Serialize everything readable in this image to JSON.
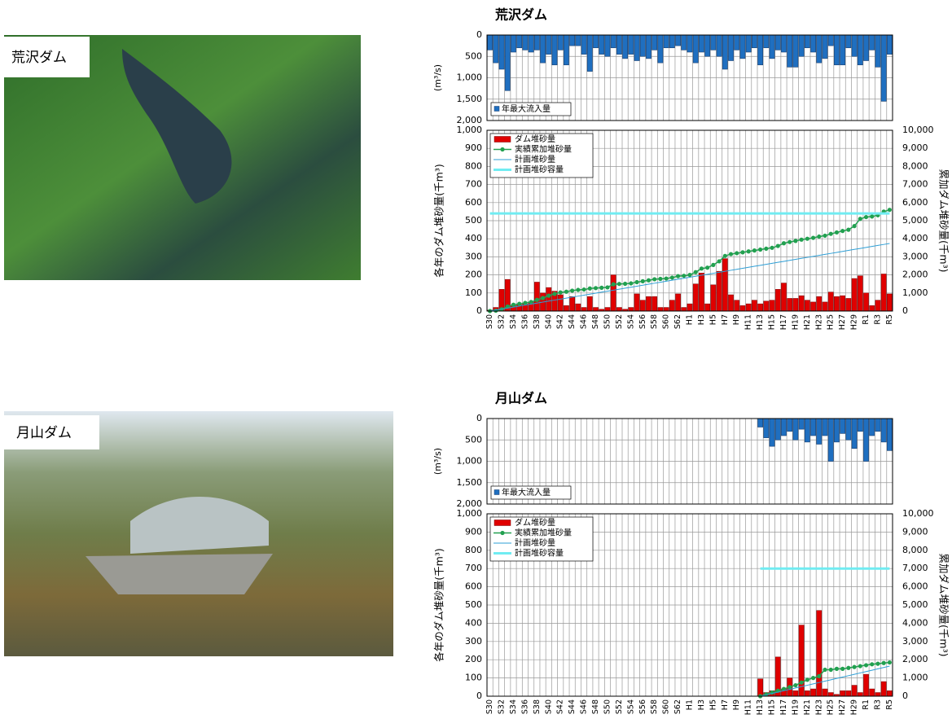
{
  "photos": [
    {
      "label": "荒沢ダム"
    },
    {
      "label": "月山ダム"
    }
  ],
  "chart_data": [
    {
      "type": "inflow",
      "title": "荒沢ダム",
      "ylabel": "(m³/s)",
      "ylim": [
        2000,
        0
      ],
      "yticks": [
        0,
        500,
        {
          "value": 1000,
          "label": "1,000"
        },
        {
          "value": 1500,
          "label": "1,500"
        },
        {
          "value": 2000,
          "label": "2,000"
        }
      ],
      "grid": true,
      "series": [
        {
          "name": "年最大流入量",
          "color": "#1f6fc0",
          "values": [
            350,
            650,
            800,
            1300,
            400,
            300,
            350,
            400,
            350,
            650,
            450,
            700,
            350,
            700,
            250,
            250,
            450,
            850,
            300,
            450,
            500,
            300,
            450,
            550,
            450,
            600,
            500,
            550,
            350,
            650,
            300,
            300,
            250,
            350,
            400,
            650,
            400,
            500,
            350,
            500,
            800,
            600,
            350,
            550,
            400,
            300,
            700,
            300,
            550,
            350,
            400,
            750,
            750,
            500,
            300,
            400,
            650,
            550,
            250,
            700,
            700,
            300,
            500,
            700,
            600,
            350,
            750,
            1550,
            450
          ]
        }
      ]
    },
    {
      "type": "combo",
      "ylabel": "各年のダム堆砂量(千m³)",
      "y2label": "累加ダム堆砂量(千m³)",
      "ylim": [
        0,
        1000
      ],
      "yticks": [
        0,
        100,
        200,
        300,
        400,
        500,
        600,
        700,
        800,
        900,
        {
          "value": 1000,
          "label": "1,000"
        }
      ],
      "y2lim": [
        0,
        10000
      ],
      "y2ticks": [
        0,
        {
          "value": 1000,
          "label": "1,000"
        },
        {
          "value": 2000,
          "label": "2,000"
        },
        {
          "value": 3000,
          "label": "3,000"
        },
        {
          "value": 4000,
          "label": "4,000"
        },
        {
          "value": 5000,
          "label": "5,000"
        },
        {
          "value": 6000,
          "label": "6,000"
        },
        {
          "value": 7000,
          "label": "7,000"
        },
        {
          "value": 8000,
          "label": "8,000"
        },
        {
          "value": 9000,
          "label": "9,000"
        },
        {
          "value": 10000,
          "label": "10,000"
        }
      ],
      "grid": true,
      "legend": "top-left",
      "categories": [
        "S30",
        null,
        "S32",
        null,
        "S34",
        null,
        "S36",
        null,
        "S38",
        null,
        "S40",
        null,
        "S42",
        null,
        "S44",
        null,
        "S46",
        null,
        "S48",
        null,
        "S50",
        null,
        "S52",
        null,
        "S54",
        null,
        "S56",
        null,
        "S58",
        null,
        "S60",
        null,
        "S62",
        null,
        "H1",
        null,
        "H3",
        null,
        "H5",
        null,
        "H7",
        null,
        "H9",
        null,
        "H11",
        null,
        "H13",
        null,
        "H15",
        null,
        "H17",
        null,
        "H19",
        null,
        "H21",
        null,
        "H23",
        null,
        "H25",
        null,
        "H27",
        null,
        "H29",
        null,
        "R1",
        null,
        "R3",
        null,
        "R5"
      ],
      "series": [
        {
          "name": "ダム堆砂量",
          "type": "bar",
          "color": "#e00000",
          "values": [
            5,
            20,
            120,
            175,
            30,
            35,
            40,
            50,
            160,
            100,
            130,
            110,
            90,
            30,
            80,
            40,
            20,
            80,
            20,
            10,
            20,
            200,
            20,
            10,
            20,
            95,
            60,
            80,
            80,
            20,
            20,
            60,
            95,
            20,
            40,
            150,
            210,
            40,
            145,
            220,
            290,
            90,
            60,
            30,
            40,
            60,
            40,
            55,
            60,
            120,
            155,
            70,
            70,
            85,
            60,
            50,
            80,
            50,
            105,
            80,
            85,
            70,
            180,
            195,
            100,
            30,
            60,
            205,
            95
          ]
        },
        {
          "name": "実績累加堆砂量",
          "type": "line",
          "axis": "y2",
          "marker": true,
          "color": "#22a050",
          "values": [
            0,
            20,
            100,
            250,
            350,
            400,
            450,
            500,
            620,
            720,
            850,
            950,
            1030,
            1070,
            1130,
            1170,
            1190,
            1250,
            1270,
            1290,
            1310,
            1480,
            1500,
            1510,
            1530,
            1600,
            1650,
            1700,
            1760,
            1780,
            1800,
            1850,
            1930,
            1950,
            2000,
            2150,
            2350,
            2400,
            2550,
            2750,
            3050,
            3150,
            3200,
            3250,
            3300,
            3350,
            3400,
            3450,
            3500,
            3600,
            3750,
            3820,
            3880,
            3950,
            4000,
            4050,
            4120,
            4170,
            4270,
            4350,
            4430,
            4500,
            4700,
            5100,
            5200,
            5230,
            5300,
            5500,
            5600
          ]
        },
        {
          "name": "計画堆砂量",
          "type": "line",
          "axis": "y2",
          "color": "#2e9fd6",
          "values": [
            0,
            55,
            110,
            165,
            220,
            275,
            330,
            385,
            440,
            495,
            550,
            605,
            660,
            715,
            770,
            825,
            880,
            935,
            990,
            1045,
            1100,
            1155,
            1210,
            1265,
            1320,
            1375,
            1430,
            1485,
            1540,
            1595,
            1650,
            1705,
            1760,
            1815,
            1870,
            1925,
            1980,
            2035,
            2090,
            2145,
            2200,
            2255,
            2310,
            2365,
            2420,
            2475,
            2530,
            2585,
            2640,
            2695,
            2750,
            2805,
            2860,
            2915,
            2970,
            3025,
            3080,
            3135,
            3190,
            3245,
            3300,
            3355,
            3410,
            3465,
            3520,
            3575,
            3630,
            3685,
            3740
          ]
        },
        {
          "name": "計画堆砂容量",
          "type": "line",
          "axis": "y2",
          "thick": true,
          "color": "#70ecf2",
          "values": [
            5400,
            5400,
            5400,
            5400,
            5400,
            5400,
            5400,
            5400,
            5400,
            5400,
            5400,
            5400,
            5400,
            5400,
            5400,
            5400,
            5400,
            5400,
            5400,
            5400,
            5400,
            5400,
            5400,
            5400,
            5400,
            5400,
            5400,
            5400,
            5400,
            5400,
            5400,
            5400,
            5400,
            5400,
            5400,
            5400,
            5400,
            5400,
            5400,
            5400,
            5400,
            5400,
            5400,
            5400,
            5400,
            5400,
            5400,
            5400,
            5400,
            5400,
            5400,
            5400,
            5400,
            5400,
            5400,
            5400,
            5400,
            5400,
            5400,
            5400,
            5400,
            5400,
            5400,
            5400,
            5400,
            5400,
            5400,
            5400,
            5400
          ]
        }
      ]
    },
    {
      "type": "inflow",
      "title": "月山ダム",
      "ylabel": "(m³/s)",
      "ylim": [
        2000,
        0
      ],
      "yticks": [
        0,
        500,
        {
          "value": 1000,
          "label": "1,000"
        },
        {
          "value": 1500,
          "label": "1,500"
        },
        {
          "value": 2000,
          "label": "2,000"
        }
      ],
      "grid": true,
      "series": [
        {
          "name": "年最大流入量",
          "color": "#1f6fc0",
          "values": [
            null,
            null,
            null,
            null,
            null,
            null,
            null,
            null,
            null,
            null,
            null,
            null,
            null,
            null,
            null,
            null,
            null,
            null,
            null,
            null,
            null,
            null,
            null,
            null,
            null,
            null,
            null,
            null,
            null,
            null,
            null,
            null,
            null,
            null,
            null,
            null,
            null,
            null,
            null,
            null,
            null,
            null,
            null,
            null,
            null,
            null,
            200,
            450,
            650,
            500,
            400,
            300,
            500,
            250,
            550,
            400,
            600,
            400,
            1000,
            550,
            350,
            500,
            700,
            300,
            1000,
            400,
            300,
            550,
            750
          ]
        }
      ]
    },
    {
      "type": "combo",
      "ylabel": "各年のダム堆砂量(千m³)",
      "y2label": "累加ダム堆砂量(千m³)",
      "ylim": [
        0,
        1000
      ],
      "yticks": [
        0,
        100,
        200,
        300,
        400,
        500,
        600,
        700,
        800,
        900,
        {
          "value": 1000,
          "label": "1,000"
        }
      ],
      "y2lim": [
        0,
        10000
      ],
      "y2ticks": [
        0,
        {
          "value": 1000,
          "label": "1,000"
        },
        {
          "value": 2000,
          "label": "2,000"
        },
        {
          "value": 3000,
          "label": "3,000"
        },
        {
          "value": 4000,
          "label": "4,000"
        },
        {
          "value": 5000,
          "label": "5,000"
        },
        {
          "value": 6000,
          "label": "6,000"
        },
        {
          "value": 7000,
          "label": "7,000"
        },
        {
          "value": 8000,
          "label": "8,000"
        },
        {
          "value": 9000,
          "label": "9,000"
        },
        {
          "value": 10000,
          "label": "10,000"
        }
      ],
      "grid": true,
      "legend": "top-left",
      "categories": [
        "S30",
        null,
        "S32",
        null,
        "S34",
        null,
        "S36",
        null,
        "S38",
        null,
        "S40",
        null,
        "S42",
        null,
        "S44",
        null,
        "S46",
        null,
        "S48",
        null,
        "S50",
        null,
        "S52",
        null,
        "S54",
        null,
        "S56",
        null,
        "S58",
        null,
        "S60",
        null,
        "S62",
        null,
        "H1",
        null,
        "H3",
        null,
        "H5",
        null,
        "H7",
        null,
        "H9",
        null,
        "H11",
        null,
        "H13",
        null,
        "H15",
        null,
        "H17",
        null,
        "H19",
        null,
        "H21",
        null,
        "H23",
        null,
        "H25",
        null,
        "H27",
        null,
        "H29",
        null,
        "R1",
        null,
        "R3",
        null,
        "R5"
      ],
      "series": [
        {
          "name": "ダム堆砂量",
          "type": "bar",
          "color": "#e00000",
          "values": [
            null,
            null,
            null,
            null,
            null,
            null,
            null,
            null,
            null,
            null,
            null,
            null,
            null,
            null,
            null,
            null,
            null,
            null,
            null,
            null,
            null,
            null,
            null,
            null,
            null,
            null,
            null,
            null,
            null,
            null,
            null,
            null,
            null,
            null,
            null,
            null,
            null,
            null,
            null,
            null,
            null,
            null,
            null,
            null,
            null,
            null,
            95,
            20,
            30,
            215,
            40,
            100,
            30,
            390,
            30,
            40,
            470,
            40,
            20,
            10,
            30,
            30,
            60,
            20,
            120,
            40,
            20,
            80,
            30
          ]
        },
        {
          "name": "実績累加堆砂量",
          "type": "line",
          "axis": "y2",
          "marker": true,
          "color": "#22a050",
          "values": [
            null,
            null,
            null,
            null,
            null,
            null,
            null,
            null,
            null,
            null,
            null,
            null,
            null,
            null,
            null,
            null,
            null,
            null,
            null,
            null,
            null,
            null,
            null,
            null,
            null,
            null,
            null,
            null,
            null,
            null,
            null,
            null,
            null,
            null,
            null,
            null,
            null,
            null,
            null,
            null,
            null,
            null,
            null,
            null,
            null,
            null,
            0,
            100,
            200,
            300,
            400,
            500,
            600,
            750,
            900,
            1000,
            1100,
            1450,
            1450,
            1500,
            1500,
            1550,
            1600,
            1650,
            1700,
            1750,
            1780,
            1820,
            1850
          ]
        },
        {
          "name": "計画堆砂量",
          "type": "line",
          "axis": "y2",
          "color": "#2e9fd6",
          "values": [
            null,
            null,
            null,
            null,
            null,
            null,
            null,
            null,
            null,
            null,
            null,
            null,
            null,
            null,
            null,
            null,
            null,
            null,
            null,
            null,
            null,
            null,
            null,
            null,
            null,
            null,
            null,
            null,
            null,
            null,
            null,
            null,
            null,
            null,
            null,
            null,
            null,
            null,
            null,
            null,
            null,
            null,
            null,
            null,
            null,
            null,
            0,
            75,
            150,
            225,
            300,
            375,
            450,
            525,
            600,
            675,
            750,
            825,
            900,
            975,
            1050,
            1125,
            1200,
            1275,
            1350,
            1425,
            1500,
            1575,
            1650
          ]
        },
        {
          "name": "計画堆砂容量",
          "type": "line",
          "axis": "y2",
          "thick": true,
          "color": "#70ecf2",
          "values": [
            null,
            null,
            null,
            null,
            null,
            null,
            null,
            null,
            null,
            null,
            null,
            null,
            null,
            null,
            null,
            null,
            null,
            null,
            null,
            null,
            null,
            null,
            null,
            null,
            null,
            null,
            null,
            null,
            null,
            null,
            null,
            null,
            null,
            null,
            null,
            null,
            null,
            null,
            null,
            null,
            null,
            null,
            null,
            null,
            null,
            null,
            7000,
            7000,
            7000,
            7000,
            7000,
            7000,
            7000,
            7000,
            7000,
            7000,
            7000,
            7000,
            7000,
            7000,
            7000,
            7000,
            7000,
            7000,
            7000,
            7000,
            7000,
            7000,
            7000
          ]
        }
      ]
    }
  ]
}
